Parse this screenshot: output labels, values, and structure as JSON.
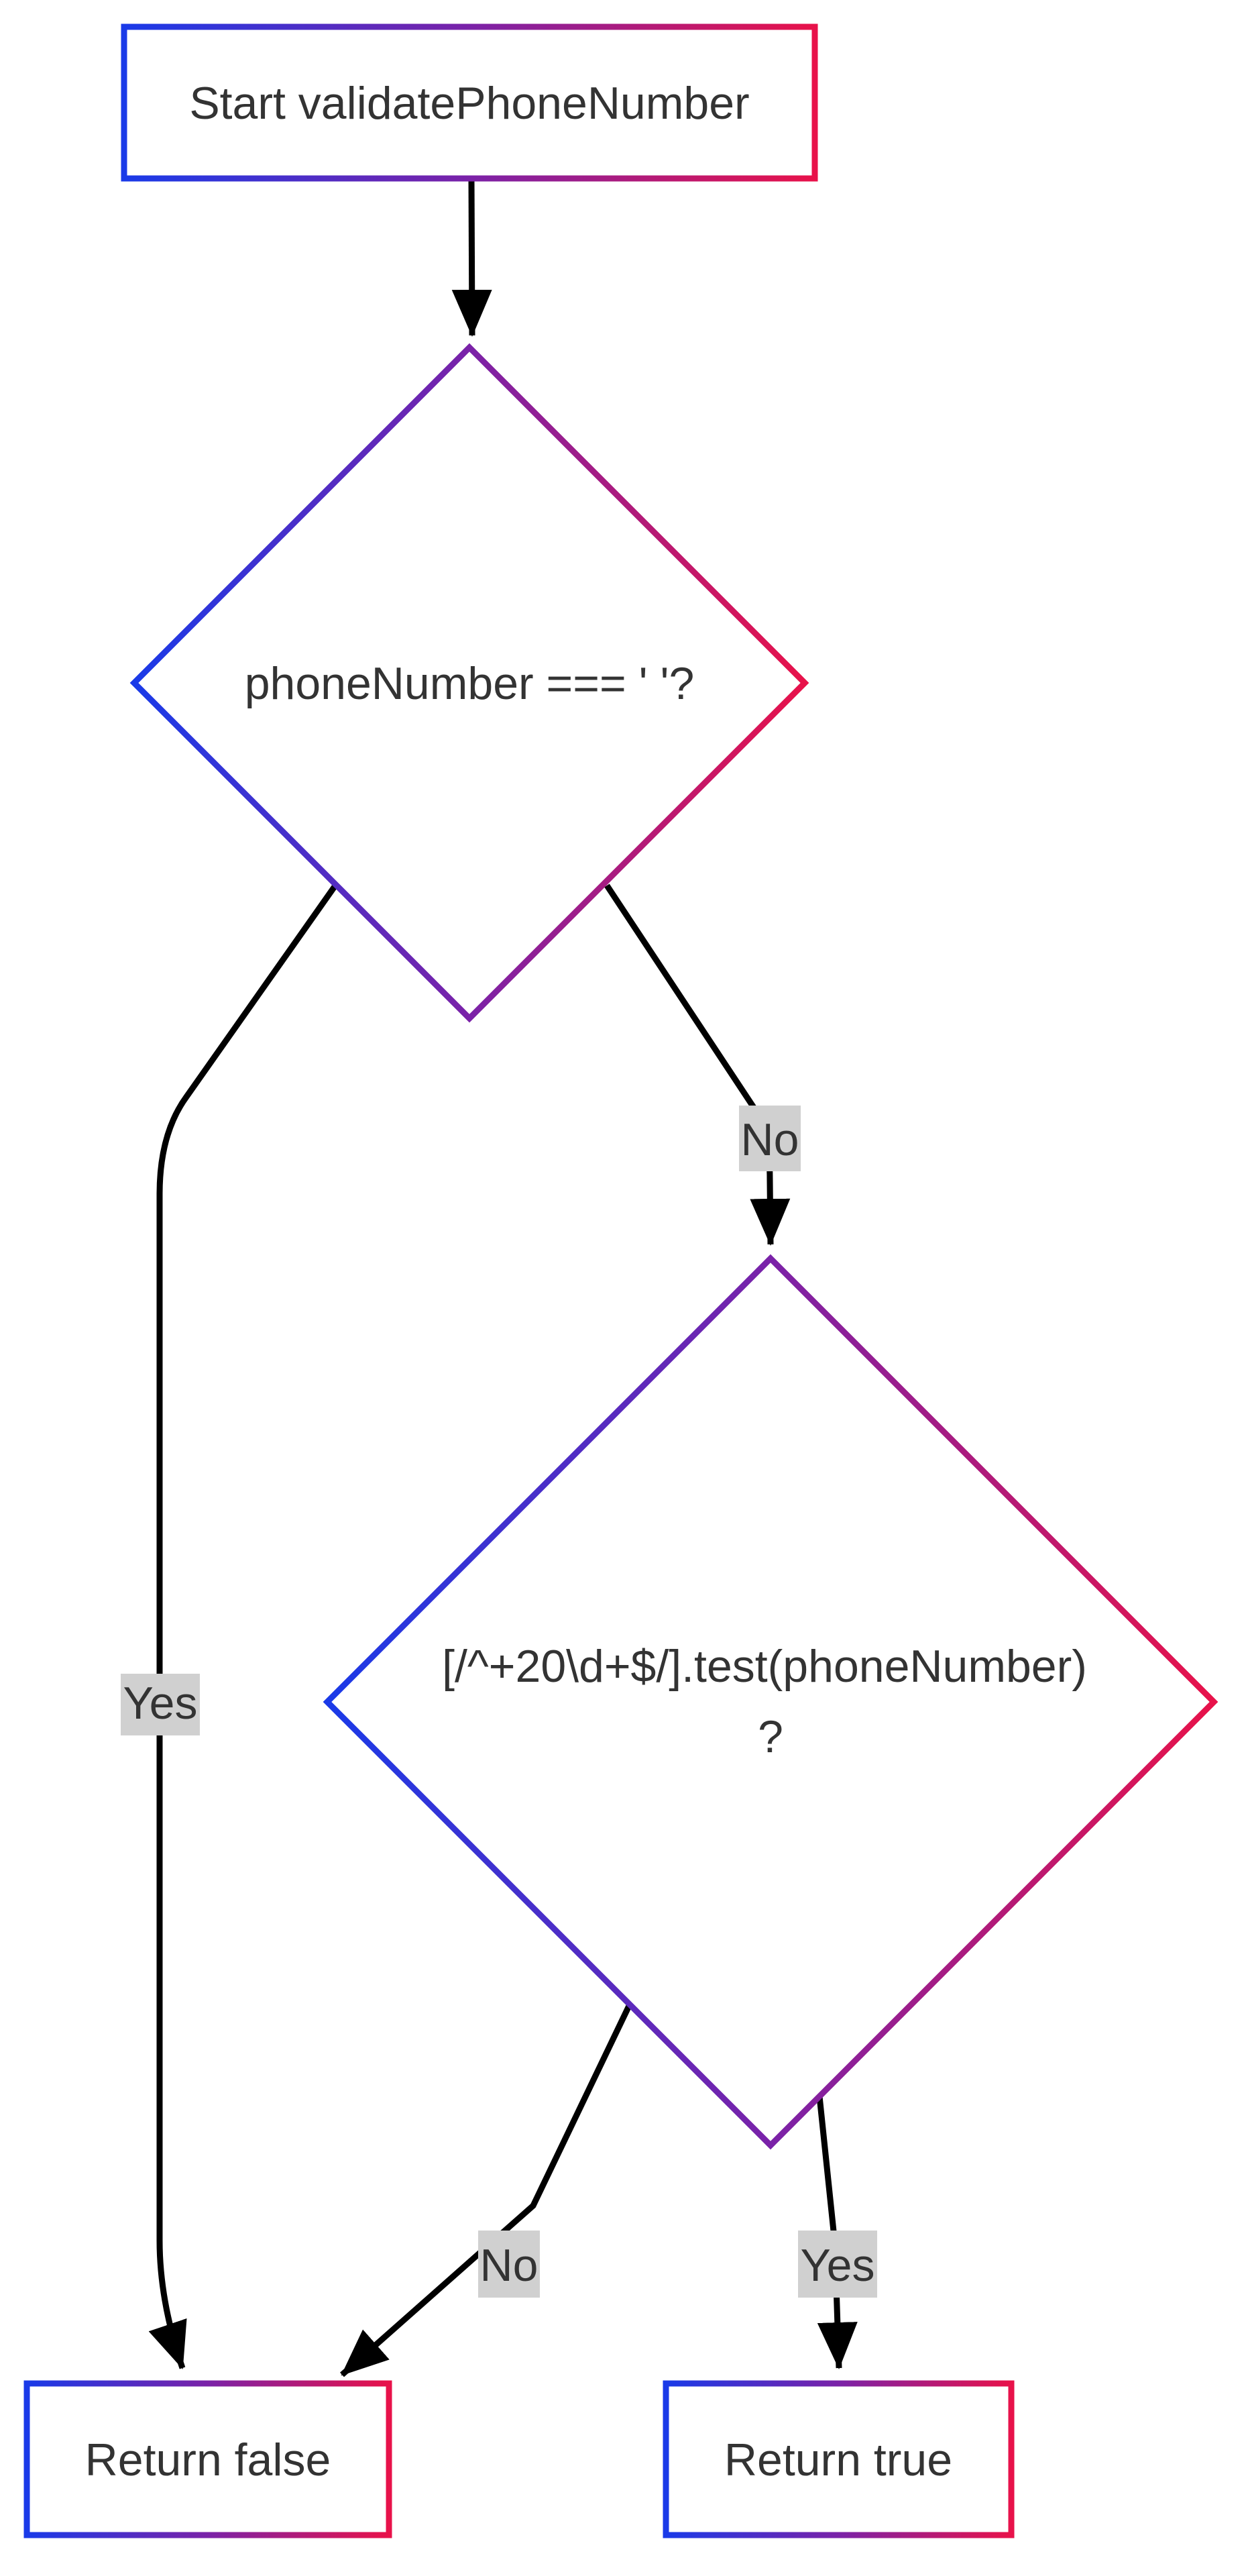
{
  "diagram": {
    "type": "flowchart",
    "nodes": {
      "start": {
        "label": "Start validatePhoneNumber"
      },
      "check_empty": {
        "label": "phoneNumber === ' '?"
      },
      "check_regex": {
        "line1": "[/^+20\\d+$/].test(phoneNumber)",
        "line2": "?"
      },
      "return_false": {
        "label": "Return false"
      },
      "return_true": {
        "label": "Return true"
      }
    },
    "edges": {
      "start_to_empty": {
        "label": ""
      },
      "empty_yes": {
        "label": "Yes"
      },
      "empty_no": {
        "label": "No"
      },
      "regex_no": {
        "label": "No"
      },
      "regex_yes": {
        "label": "Yes"
      }
    },
    "colors": {
      "gradient_start": "#1a3ae8",
      "gradient_mid": "#7a22a8",
      "gradient_end": "#e8124a",
      "edge": "#000000",
      "label_bg": "#d0d0d0",
      "text": "#333333"
    }
  }
}
